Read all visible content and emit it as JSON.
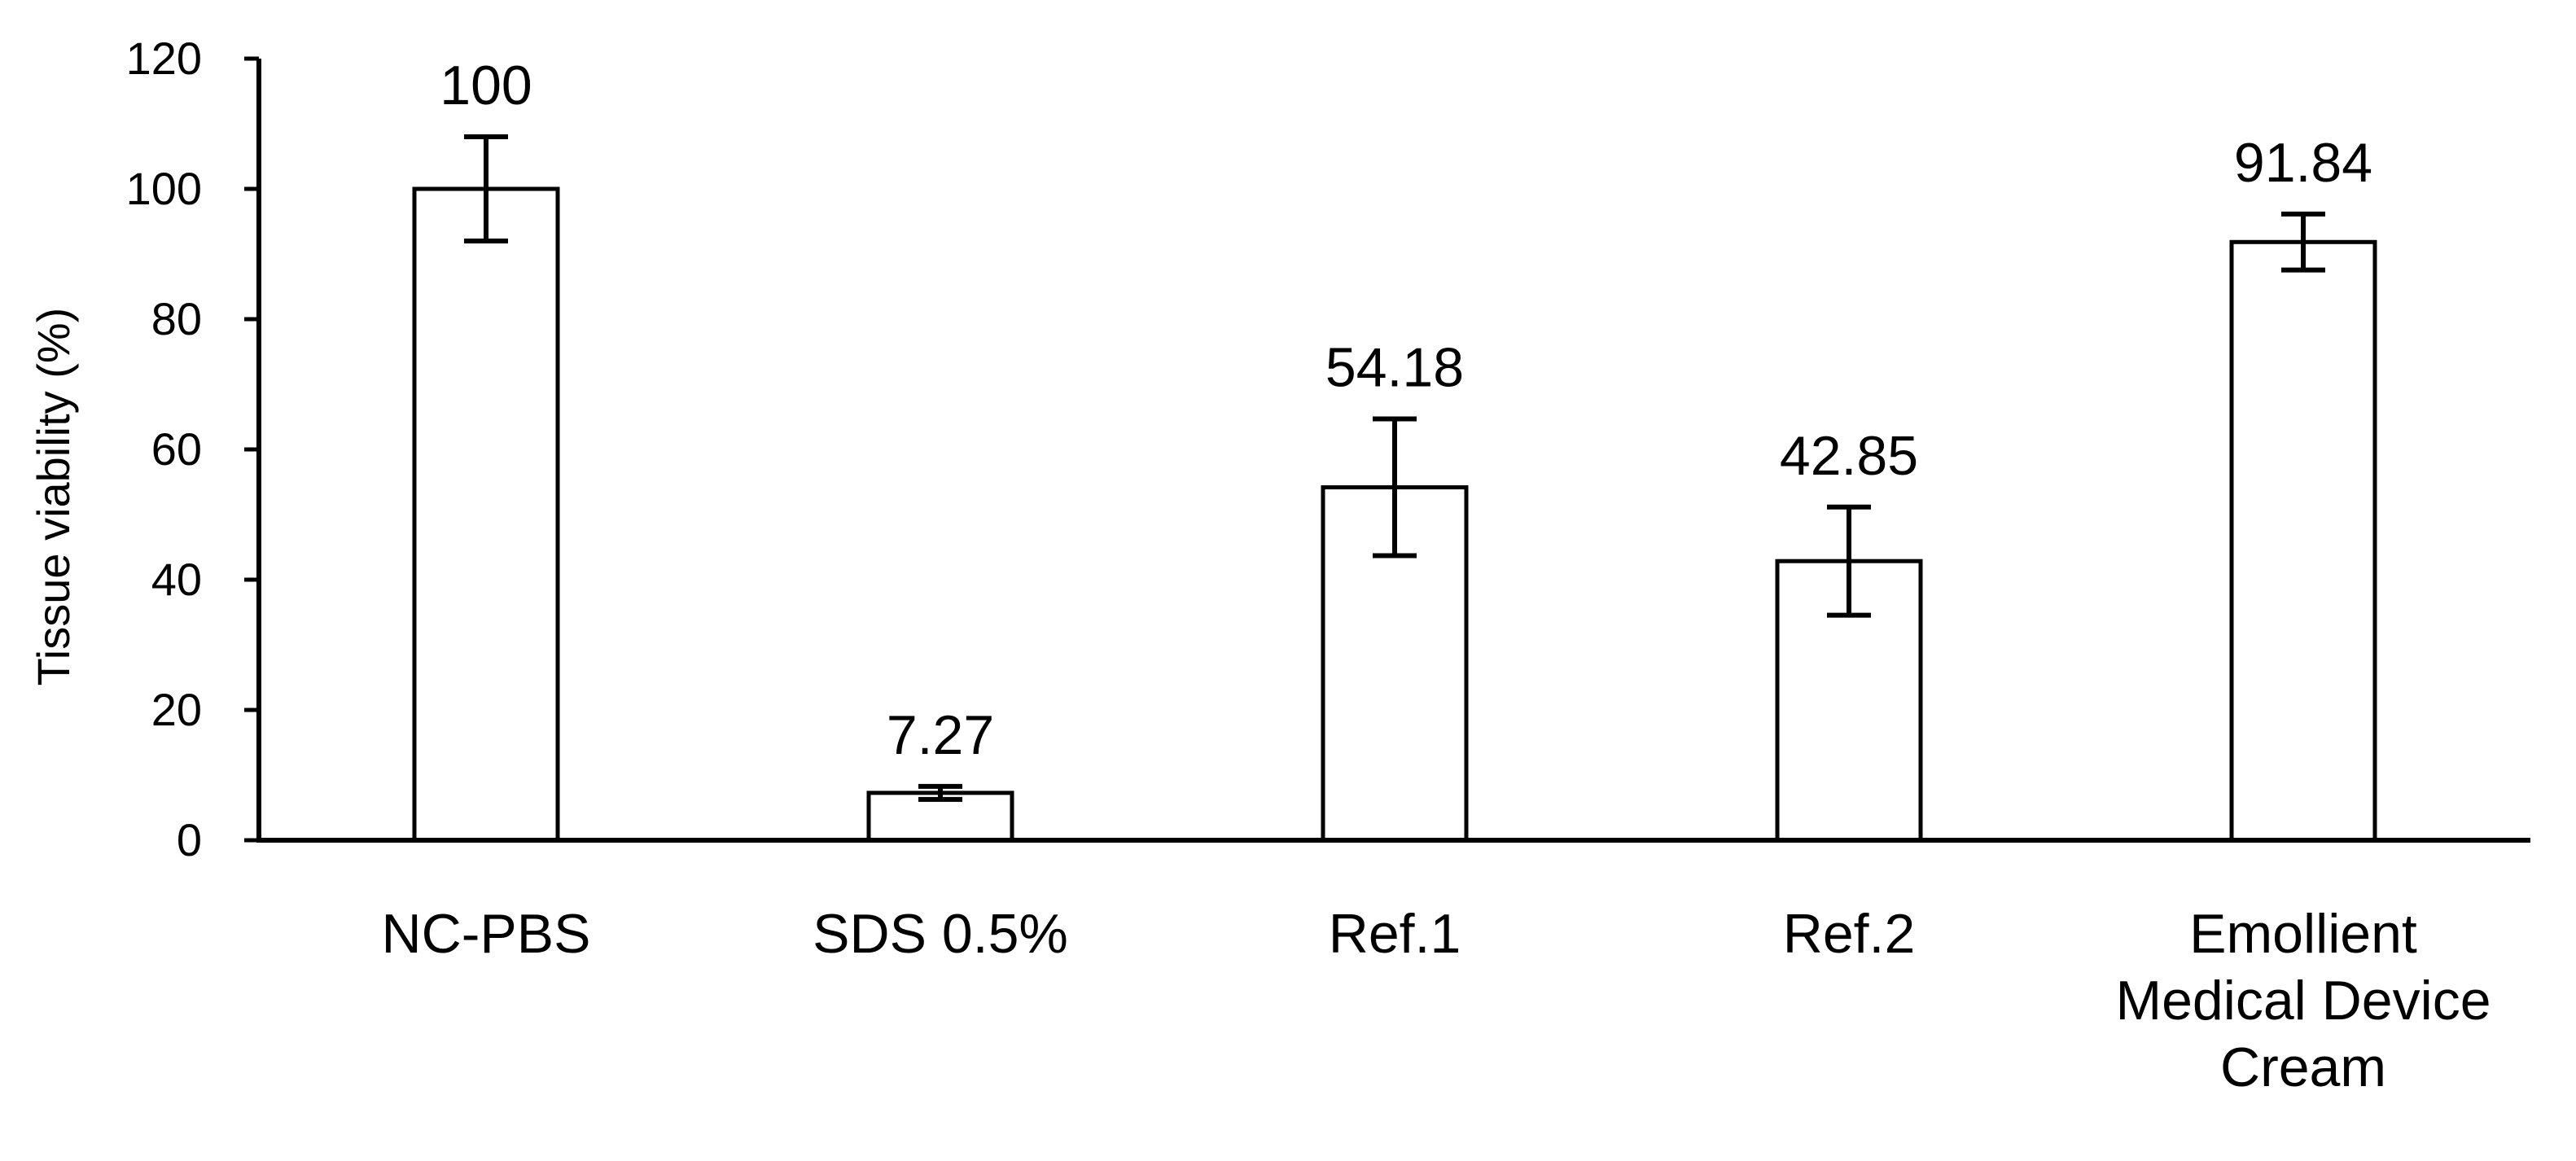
{
  "chart_data": {
    "type": "bar",
    "categories": [
      [
        "NC-PBS"
      ],
      [
        "SDS 0.5%"
      ],
      [
        "Ref.1"
      ],
      [
        "Ref.2"
      ],
      [
        "Emollient",
        "Medical Device",
        "Cream"
      ]
    ],
    "values": [
      100,
      7.27,
      54.18,
      42.85,
      91.84
    ],
    "data_labels": [
      "100",
      "7.27",
      "54.18",
      "42.85",
      "91.84"
    ],
    "error": [
      8,
      1,
      10.5,
      8.3,
      4.3
    ],
    "ylabel": "Tissue viability (%)",
    "ylim": [
      0,
      120
    ],
    "yticks": [
      0,
      20,
      40,
      60,
      80,
      100,
      120
    ],
    "grid": false,
    "legend": "none",
    "colors": {
      "bar_fill": "#ffffff",
      "bar_stroke": "#000000"
    }
  }
}
